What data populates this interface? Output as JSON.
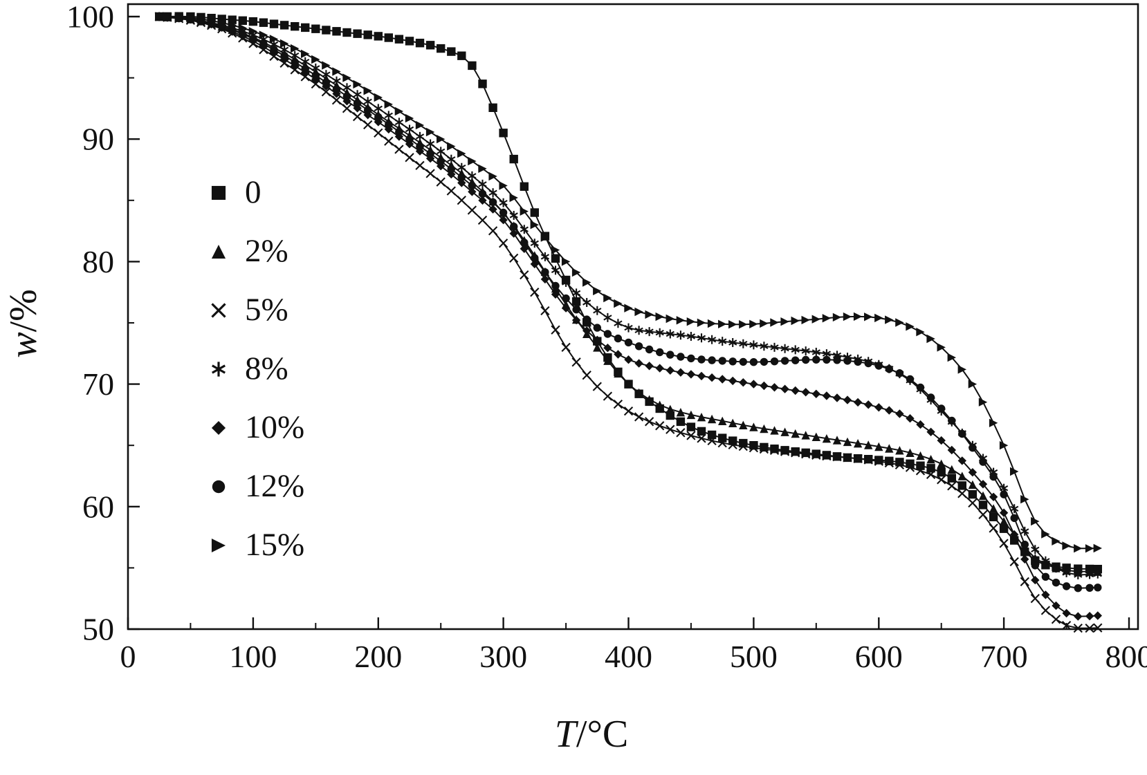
{
  "figure": {
    "background": "#ffffff",
    "ink_color": "#111111"
  },
  "chart_data": {
    "type": "line",
    "title": "",
    "xlabel": "T/°C",
    "ylabel": "w/%",
    "xlim": [
      0,
      800
    ],
    "ylim": [
      50,
      100
    ],
    "x_ticks": [
      0,
      100,
      200,
      300,
      400,
      500,
      600,
      700,
      800
    ],
    "y_ticks": [
      50,
      60,
      70,
      80,
      90,
      100
    ],
    "x_minor_ticks": [
      50,
      150,
      250,
      350,
      450,
      550,
      650,
      750
    ],
    "y_minor_ticks": [
      55,
      65,
      75,
      85,
      95
    ],
    "grid": false,
    "legend_position": "upper-left-inside",
    "x": [
      25,
      50,
      75,
      100,
      125,
      150,
      175,
      200,
      225,
      250,
      275,
      300,
      325,
      350,
      375,
      400,
      425,
      450,
      475,
      500,
      525,
      550,
      575,
      600,
      625,
      650,
      675,
      700,
      725,
      750,
      775
    ],
    "series": [
      {
        "name": "0",
        "marker": "square",
        "y": [
          100,
          100,
          99.8,
          99.6,
          99.3,
          99.0,
          98.7,
          98.4,
          98.0,
          97.4,
          96.0,
          90.5,
          84.0,
          78.5,
          73.5,
          70.0,
          68.0,
          66.5,
          65.6,
          65.0,
          64.6,
          64.3,
          64.0,
          63.8,
          63.5,
          62.8,
          61.0,
          58.2,
          55.6,
          55.0,
          54.9
        ]
      },
      {
        "name": "2%",
        "marker": "triangle-up",
        "y": [
          100,
          99.8,
          99.2,
          98.3,
          97.0,
          95.5,
          93.8,
          92.0,
          90.3,
          88.5,
          86.5,
          84.0,
          80.5,
          76.5,
          73.0,
          70.0,
          68.3,
          67.5,
          67.0,
          66.5,
          66.1,
          65.7,
          65.3,
          64.9,
          64.4,
          63.5,
          61.8,
          58.8,
          55.8,
          54.8,
          54.7
        ]
      },
      {
        "name": "5%",
        "marker": "x",
        "y": [
          100,
          99.7,
          99.0,
          97.8,
          96.2,
          94.5,
          92.5,
          90.5,
          88.5,
          86.5,
          84.2,
          81.5,
          77.5,
          73.0,
          69.8,
          67.8,
          66.6,
          65.8,
          65.2,
          64.8,
          64.5,
          64.2,
          64.0,
          63.7,
          63.2,
          62.2,
          60.3,
          57.0,
          52.5,
          50.3,
          50.1
        ]
      },
      {
        "name": "8%",
        "marker": "asterisk",
        "y": [
          100,
          99.8,
          99.3,
          98.5,
          97.3,
          95.8,
          94.2,
          92.5,
          90.8,
          89.0,
          87.0,
          84.8,
          81.5,
          78.3,
          76.0,
          74.6,
          74.2,
          73.9,
          73.5,
          73.2,
          72.9,
          72.6,
          72.2,
          71.6,
          70.3,
          67.8,
          65.0,
          61.5,
          56.5,
          54.6,
          54.5
        ]
      },
      {
        "name": "10%",
        "marker": "diamond",
        "y": [
          100,
          99.8,
          99.1,
          98.0,
          96.5,
          94.9,
          93.1,
          91.4,
          89.6,
          87.8,
          85.7,
          83.4,
          79.8,
          76.2,
          73.6,
          72.0,
          71.3,
          70.8,
          70.4,
          70.0,
          69.6,
          69.2,
          68.7,
          68.1,
          67.2,
          65.4,
          62.8,
          59.5,
          54.0,
          51.3,
          51.1
        ]
      },
      {
        "name": "12%",
        "marker": "circle",
        "y": [
          100,
          99.8,
          99.2,
          98.2,
          96.8,
          95.2,
          93.5,
          91.8,
          90.0,
          88.2,
          86.2,
          84.0,
          80.3,
          77.0,
          74.6,
          73.4,
          72.6,
          72.1,
          71.9,
          71.8,
          71.9,
          72.0,
          71.9,
          71.5,
          70.4,
          68.0,
          64.8,
          61.0,
          55.2,
          53.5,
          53.4
        ]
      },
      {
        "name": "15%",
        "marker": "triangle-right",
        "y": [
          100,
          99.9,
          99.5,
          98.8,
          97.8,
          96.5,
          95.0,
          93.4,
          91.7,
          90.0,
          88.2,
          86.2,
          83.0,
          80.0,
          77.6,
          76.2,
          75.5,
          75.1,
          74.9,
          74.9,
          75.1,
          75.3,
          75.5,
          75.4,
          74.7,
          73.0,
          70.0,
          65.0,
          58.8,
          56.8,
          56.6
        ]
      }
    ]
  }
}
